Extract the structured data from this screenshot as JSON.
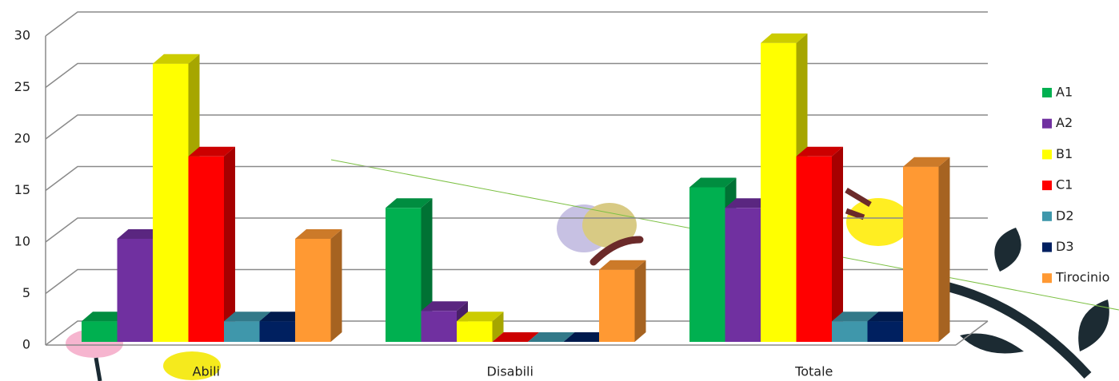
{
  "chart_data": {
    "type": "bar3d",
    "categories": [
      "Abili",
      "Disabili",
      "Totale"
    ],
    "series": [
      {
        "name": "A1",
        "color": "#00b050",
        "values": [
          2,
          13,
          15
        ]
      },
      {
        "name": "A2",
        "color": "#7030a0",
        "values": [
          10,
          3,
          13
        ]
      },
      {
        "name": "B1",
        "color": "#ffff00",
        "values": [
          27,
          2,
          29
        ]
      },
      {
        "name": "C1",
        "color": "#ff0000",
        "values": [
          18,
          0,
          18
        ]
      },
      {
        "name": "D2",
        "color": "#3f97ab",
        "values": [
          2,
          0,
          2
        ]
      },
      {
        "name": "D3",
        "color": "#002060",
        "values": [
          2,
          0,
          2
        ]
      },
      {
        "name": "Tirocinio",
        "color": "#ff9933",
        "values": [
          10,
          7,
          17
        ]
      }
    ],
    "ylim": [
      0,
      30
    ],
    "yticks": [
      0,
      5,
      10,
      15,
      20,
      25,
      30
    ],
    "grid": true,
    "legend": "right"
  }
}
